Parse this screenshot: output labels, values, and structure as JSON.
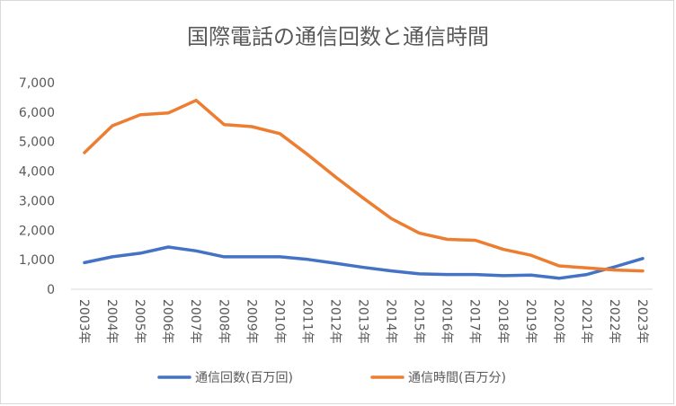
{
  "chart_data": {
    "type": "line",
    "title": "国際電話の通信回数と通信時間",
    "xlabel": "",
    "ylabel": "",
    "categories": [
      "2003年",
      "2004年",
      "2005年",
      "2006年",
      "2007年",
      "2008年",
      "2009年",
      "2010年",
      "2011年",
      "2012年",
      "2013年",
      "2014年",
      "2015年",
      "2016年",
      "2017年",
      "2018年",
      "2019年",
      "2020年",
      "2021年",
      "2022年",
      "2023年"
    ],
    "ylim": [
      0,
      7000
    ],
    "yticks": [
      "0",
      "1,000",
      "2,000",
      "3,000",
      "4,000",
      "5,000",
      "6,000",
      "7,000"
    ],
    "ytick_values": [
      0,
      1000,
      2000,
      3000,
      4000,
      5000,
      6000,
      7000
    ],
    "grid": false,
    "legend_position": "bottom",
    "series": [
      {
        "name": "通信回数(百万回)",
        "color": "#4472c4",
        "values": [
          900,
          1100,
          1220,
          1430,
          1300,
          1100,
          1100,
          1100,
          1010,
          880,
          740,
          620,
          520,
          500,
          500,
          460,
          480,
          370,
          500,
          760,
          1040
        ]
      },
      {
        "name": "通信時間(百万分)",
        "color": "#ed7d31",
        "values": [
          4630,
          5540,
          5910,
          5970,
          6400,
          5580,
          5510,
          5270,
          4560,
          3800,
          3080,
          2390,
          1900,
          1690,
          1660,
          1350,
          1150,
          790,
          720,
          650,
          620
        ]
      }
    ]
  }
}
